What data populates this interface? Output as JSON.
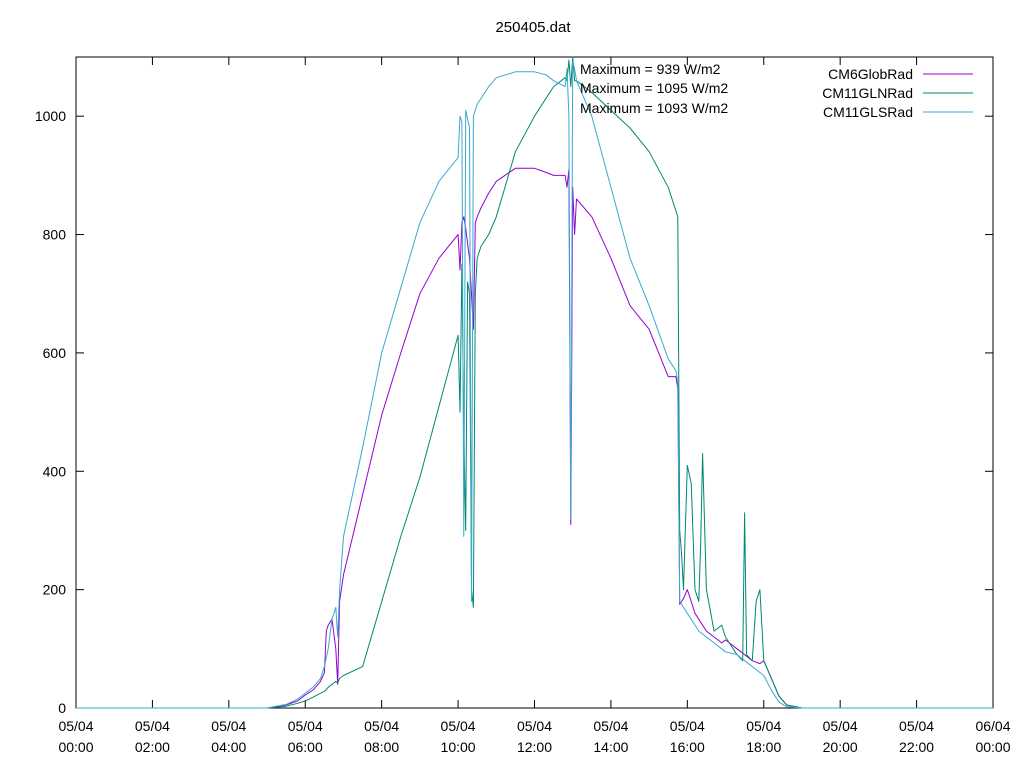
{
  "chart_data": {
    "type": "line",
    "title": "250405.dat",
    "xlabel": "",
    "ylabel": "",
    "xlim": [
      0,
      24
    ],
    "ylim": [
      0,
      1100
    ],
    "x_ticks": [
      {
        "value": 0,
        "line1": "05/04",
        "line2": "00:00"
      },
      {
        "value": 2,
        "line1": "05/04",
        "line2": "02:00"
      },
      {
        "value": 4,
        "line1": "05/04",
        "line2": "04:00"
      },
      {
        "value": 6,
        "line1": "05/04",
        "line2": "06:00"
      },
      {
        "value": 8,
        "line1": "05/04",
        "line2": "08:00"
      },
      {
        "value": 10,
        "line1": "05/04",
        "line2": "10:00"
      },
      {
        "value": 12,
        "line1": "05/04",
        "line2": "12:00"
      },
      {
        "value": 14,
        "line1": "05/04",
        "line2": "14:00"
      },
      {
        "value": 16,
        "line1": "05/04",
        "line2": "16:00"
      },
      {
        "value": 18,
        "line1": "05/04",
        "line2": "18:00"
      },
      {
        "value": 20,
        "line1": "05/04",
        "line2": "20:00"
      },
      {
        "value": 22,
        "line1": "05/04",
        "line2": "22:00"
      },
      {
        "value": 24,
        "line1": "06/04",
        "line2": "00:00"
      }
    ],
    "y_ticks": [
      {
        "value": 0,
        "label": "0"
      },
      {
        "value": 200,
        "label": "200"
      },
      {
        "value": 400,
        "label": "400"
      },
      {
        "value": 600,
        "label": "600"
      },
      {
        "value": 800,
        "label": "800"
      },
      {
        "value": 1000,
        "label": "1000"
      }
    ],
    "grid": false,
    "legend_position": "top-right",
    "annotations": [
      "Maximum = 939 W/m2",
      "Maximum = 1095 W/m2",
      "Maximum = 1093 W/m2"
    ],
    "series": [
      {
        "name": "CM6GlobRad",
        "color": "#9400d3",
        "x": [
          0,
          1,
          2,
          3,
          4,
          5,
          5.5,
          5.8,
          6,
          6.2,
          6.4,
          6.5,
          6.55,
          6.6,
          6.7,
          6.8,
          6.85,
          6.9,
          7,
          7.5,
          8,
          8.5,
          9,
          9.5,
          10,
          10.05,
          10.1,
          10.15,
          10.2,
          10.3,
          10.4,
          10.45,
          10.5,
          10.6,
          10.8,
          11,
          11.5,
          12,
          12.3,
          12.5,
          12.8,
          12.85,
          12.9,
          12.95,
          13,
          13.05,
          13.1,
          13.5,
          14,
          14.5,
          15,
          15.5,
          15.7,
          15.75,
          15.8,
          15.9,
          16,
          16.1,
          16.2,
          16.3,
          16.5,
          16.7,
          16.9,
          17,
          17.3,
          17.5,
          17.7,
          17.9,
          18,
          18.2,
          18.4,
          18.6,
          19,
          20,
          21,
          22,
          23,
          24
        ],
        "values": [
          0,
          0,
          0,
          0,
          0,
          0,
          5,
          12,
          22,
          30,
          45,
          60,
          130,
          140,
          150,
          100,
          40,
          180,
          225,
          360,
          495,
          600,
          700,
          760,
          800,
          740,
          820,
          830,
          810,
          760,
          640,
          820,
          830,
          845,
          870,
          890,
          912,
          912,
          905,
          900,
          900,
          880,
          910,
          310,
          880,
          800,
          860,
          830,
          760,
          680,
          640,
          560,
          560,
          540,
          175,
          185,
          200,
          180,
          160,
          150,
          130,
          120,
          110,
          115,
          100,
          90,
          80,
          75,
          80,
          50,
          20,
          5,
          0,
          0,
          0,
          0,
          0,
          0
        ]
      },
      {
        "name": "CM11GLNRad",
        "color": "#00896e",
        "x": [
          0,
          1,
          2,
          3,
          4,
          5,
          5.5,
          5.8,
          6,
          6.2,
          6.4,
          6.5,
          6.6,
          6.8,
          6.85,
          6.9,
          7,
          7.5,
          8,
          8.5,
          9,
          9.5,
          10,
          10.05,
          10.1,
          10.15,
          10.2,
          10.25,
          10.3,
          10.35,
          10.4,
          10.45,
          10.5,
          10.6,
          10.8,
          11,
          11.5,
          12,
          12.3,
          12.5,
          12.8,
          12.85,
          12.9,
          12.95,
          13,
          13.05,
          13.1,
          13.5,
          14,
          14.5,
          15,
          15.5,
          15.7,
          15.75,
          15.8,
          15.85,
          15.9,
          16,
          16.1,
          16.2,
          16.3,
          16.35,
          16.4,
          16.5,
          16.7,
          16.9,
          17,
          17.3,
          17.45,
          17.5,
          17.55,
          17.7,
          17.8,
          17.9,
          18,
          18.2,
          18.4,
          18.6,
          19,
          20,
          21,
          22,
          23,
          24
        ],
        "values": [
          0,
          0,
          0,
          0,
          0,
          0,
          3,
          8,
          12,
          18,
          25,
          28,
          35,
          45,
          42,
          50,
          55,
          70,
          180,
          290,
          390,
          510,
          630,
          500,
          750,
          470,
          300,
          720,
          700,
          200,
          170,
          700,
          760,
          780,
          800,
          830,
          940,
          1000,
          1030,
          1050,
          1065,
          1060,
          1095,
          1050,
          1100,
          1060,
          1060,
          1040,
          1010,
          980,
          940,
          880,
          840,
          830,
          300,
          260,
          200,
          410,
          380,
          200,
          180,
          280,
          430,
          200,
          130,
          140,
          120,
          90,
          80,
          330,
          90,
          80,
          180,
          200,
          80,
          50,
          20,
          5,
          0,
          0,
          0,
          0,
          0,
          0
        ]
      },
      {
        "name": "CM11GLSRad",
        "color": "#3aa8d0",
        "x": [
          0,
          1,
          2,
          3,
          4,
          5,
          5.5,
          5.8,
          6,
          6.2,
          6.4,
          6.5,
          6.6,
          6.7,
          6.8,
          6.85,
          6.9,
          7,
          7.5,
          8,
          8.5,
          9,
          9.5,
          10,
          10.05,
          10.1,
          10.15,
          10.2,
          10.3,
          10.35,
          10.4,
          10.45,
          10.5,
          10.6,
          10.8,
          11,
          11.5,
          12,
          12.3,
          12.5,
          12.8,
          12.85,
          12.9,
          12.95,
          13,
          13.05,
          13.1,
          13.5,
          14,
          14.5,
          15,
          15.5,
          15.7,
          15.75,
          15.8,
          15.9,
          16,
          16.1,
          16.2,
          16.3,
          16.5,
          16.7,
          16.9,
          17,
          17.3,
          17.5,
          17.7,
          17.9,
          18,
          18.2,
          18.4,
          18.6,
          19,
          20,
          21,
          22,
          23,
          24
        ],
        "values": [
          0,
          0,
          0,
          0,
          0,
          0,
          6,
          15,
          25,
          35,
          50,
          70,
          100,
          150,
          170,
          120,
          200,
          290,
          440,
          600,
          710,
          820,
          890,
          930,
          1000,
          990,
          290,
          1010,
          980,
          180,
          1000,
          1010,
          1020,
          1030,
          1050,
          1065,
          1075,
          1075,
          1070,
          1060,
          1050,
          1080,
          1000,
          320,
          1093,
          1080,
          1060,
          1000,
          880,
          760,
          680,
          590,
          570,
          550,
          180,
          170,
          160,
          150,
          140,
          130,
          120,
          110,
          100,
          95,
          90,
          80,
          70,
          60,
          55,
          30,
          10,
          2,
          0,
          0,
          0,
          0,
          0,
          0
        ]
      }
    ]
  }
}
